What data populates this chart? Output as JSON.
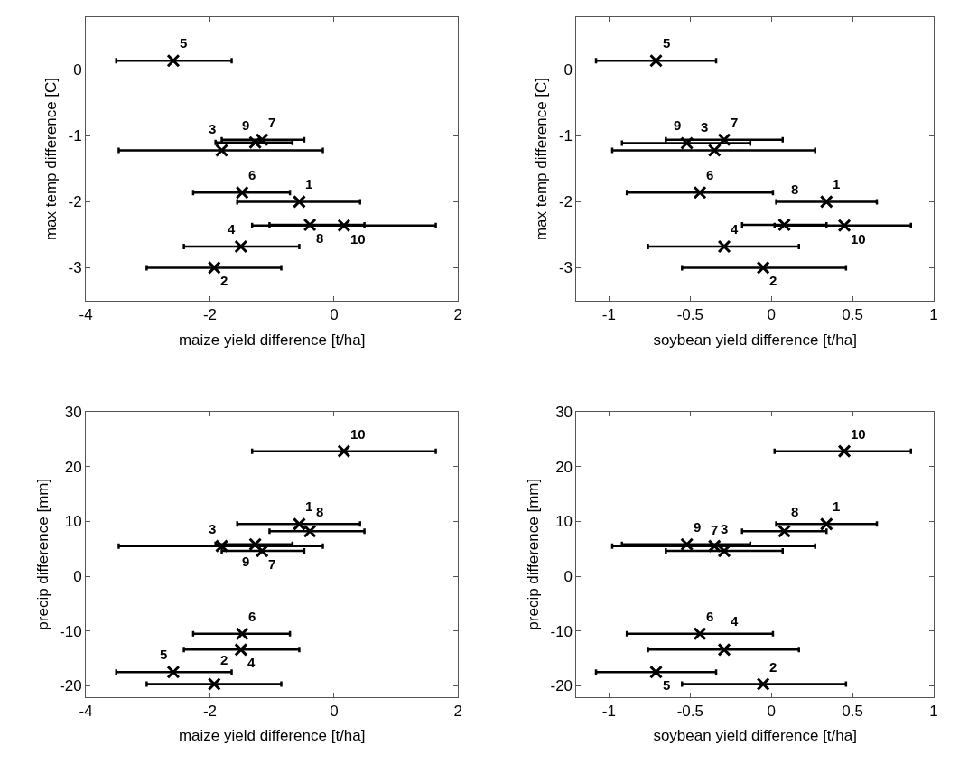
{
  "chart_data": [
    {
      "type": "scatter",
      "xlabel": "maize yield difference [t/ha]",
      "ylabel": "max temp difference [C]",
      "xlim": [
        -4,
        2
      ],
      "xticks": [
        -4,
        -2,
        0,
        2
      ],
      "ylim": [
        -3.5,
        0.8
      ],
      "yticks": [
        -3,
        -2,
        -1,
        0
      ],
      "marker": "cross",
      "series": [
        {
          "color": "#000000",
          "x": [
            -0.56,
            -1.93,
            -1.81,
            -1.5,
            -2.59,
            -1.48,
            -1.16,
            -0.39,
            -1.27,
            0.16
          ],
          "values": [
            -2.0,
            -3.0,
            -1.22,
            -2.68,
            0.14,
            -1.86,
            -1.06,
            -2.35,
            -1.1,
            -2.36
          ],
          "xerrors": [
            [
              -1.56,
              0.42
            ],
            [
              -3.02,
              -0.85
            ],
            [
              -3.47,
              -0.18
            ],
            [
              -2.42,
              -0.56
            ],
            [
              -3.51,
              -1.65
            ],
            [
              -2.27,
              -0.71
            ],
            [
              -1.81,
              -0.48
            ],
            [
              -1.04,
              0.49
            ],
            [
              -1.91,
              -0.67
            ],
            [
              -1.32,
              1.64
            ]
          ]
        }
      ],
      "annotations": [
        {
          "text": "1",
          "x": -0.56,
          "y": -2.0
        },
        {
          "text": "2",
          "x": -1.93,
          "y": -3.0
        },
        {
          "text": "3",
          "x": -1.81,
          "y": -1.22
        },
        {
          "text": "4",
          "x": -1.5,
          "y": -2.68
        },
        {
          "text": "5",
          "x": -2.59,
          "y": 0.14
        },
        {
          "text": "6",
          "x": -1.48,
          "y": -1.86
        },
        {
          "text": "7",
          "x": -1.16,
          "y": -1.06
        },
        {
          "text": "8",
          "x": -0.39,
          "y": -2.35
        },
        {
          "text": "9",
          "x": -1.27,
          "y": -1.1
        },
        {
          "text": "10",
          "x": 0.16,
          "y": -2.36
        }
      ]
    },
    {
      "type": "scatter",
      "xlabel": "soybean yield difference [t/ha]",
      "ylabel": "max temp difference [C]",
      "xlim": [
        -1.2,
        1
      ],
      "xticks": [
        -1,
        -0.5,
        0,
        0.5,
        1
      ],
      "ylim": [
        -3.5,
        0.8
      ],
      "yticks": [
        -3,
        -2,
        -1,
        0
      ],
      "marker": "cross",
      "series": [
        {
          "color": "#000000",
          "x": [
            0.34,
            -0.05,
            -0.35,
            -0.29,
            -0.71,
            -0.44,
            -0.29,
            0.08,
            -0.52,
            0.45
          ],
          "values": [
            -2.0,
            -3.0,
            -1.22,
            -2.68,
            0.14,
            -1.86,
            -1.06,
            -2.35,
            -1.11,
            -2.36
          ],
          "xerrors": [
            [
              0.03,
              0.65
            ],
            [
              -0.55,
              0.46
            ],
            [
              -0.98,
              0.27
            ],
            [
              -0.76,
              0.17
            ],
            [
              -1.08,
              -0.34
            ],
            [
              -0.89,
              0.01
            ],
            [
              -0.65,
              0.07
            ],
            [
              -0.18,
              0.34
            ],
            [
              -0.92,
              -0.13
            ],
            [
              0.02,
              0.86
            ]
          ]
        }
      ],
      "annotations": [
        {
          "text": "1",
          "x": 0.34,
          "y": -2.0
        },
        {
          "text": "2",
          "x": -0.05,
          "y": -3.0
        },
        {
          "text": "3",
          "x": -0.35,
          "y": -1.22
        },
        {
          "text": "4",
          "x": -0.29,
          "y": -2.68
        },
        {
          "text": "5",
          "x": -0.71,
          "y": 0.14
        },
        {
          "text": "6",
          "x": -0.44,
          "y": -1.86
        },
        {
          "text": "7",
          "x": -0.29,
          "y": -1.06
        },
        {
          "text": "8",
          "x": 0.08,
          "y": -2.35
        },
        {
          "text": "9",
          "x": -0.52,
          "y": -1.11
        },
        {
          "text": "10",
          "x": 0.45,
          "y": -2.36
        }
      ]
    },
    {
      "type": "scatter",
      "xlabel": "maize yield difference [t/ha]",
      "ylabel": "precip difference [mm]",
      "xlim": [
        -4,
        2
      ],
      "xticks": [
        -4,
        -2,
        0,
        2
      ],
      "ylim": [
        -22,
        30
      ],
      "yticks": [
        -20,
        -10,
        0,
        10,
        20,
        30
      ],
      "marker": "cross",
      "series": [
        {
          "color": "#000000",
          "x": [
            -0.56,
            -1.93,
            -1.81,
            -1.5,
            -2.59,
            -1.48,
            -1.16,
            -0.39,
            -1.27,
            0.16
          ],
          "values": [
            9.5,
            -19.7,
            5.5,
            -13.4,
            -17.5,
            -10.5,
            4.6,
            8.2,
            5.8,
            22.8
          ],
          "xerrors": [
            [
              -1.56,
              0.42
            ],
            [
              -3.02,
              -0.85
            ],
            [
              -3.47,
              -0.18
            ],
            [
              -2.42,
              -0.56
            ],
            [
              -3.51,
              -1.65
            ],
            [
              -2.27,
              -0.71
            ],
            [
              -1.81,
              -0.48
            ],
            [
              -1.04,
              0.49
            ],
            [
              -1.91,
              -0.67
            ],
            [
              -1.32,
              1.64
            ]
          ]
        }
      ],
      "annotations": [
        {
          "text": "1",
          "x": -0.56,
          "y": 9.5
        },
        {
          "text": "2",
          "x": -1.93,
          "y": -19.7
        },
        {
          "text": "3",
          "x": -1.81,
          "y": 5.5
        },
        {
          "text": "4",
          "x": -1.5,
          "y": -13.4
        },
        {
          "text": "5",
          "x": -2.59,
          "y": -17.5
        },
        {
          "text": "6",
          "x": -1.48,
          "y": -10.5
        },
        {
          "text": "7",
          "x": -1.16,
          "y": 4.6
        },
        {
          "text": "8",
          "x": -0.39,
          "y": 8.2
        },
        {
          "text": "9",
          "x": -1.27,
          "y": 5.8
        },
        {
          "text": "10",
          "x": 0.16,
          "y": 22.8
        }
      ]
    },
    {
      "type": "scatter",
      "xlabel": "soybean yield difference [t/ha]",
      "ylabel": "precip difference [mm]",
      "xlim": [
        -1.2,
        1
      ],
      "xticks": [
        -1,
        -0.5,
        0,
        0.5,
        1
      ],
      "ylim": [
        -22,
        30
      ],
      "yticks": [
        -20,
        -10,
        0,
        10,
        20,
        30
      ],
      "marker": "cross",
      "series": [
        {
          "color": "#000000",
          "x": [
            0.34,
            -0.05,
            -0.35,
            -0.29,
            -0.71,
            -0.44,
            -0.29,
            0.08,
            -0.52,
            0.45
          ],
          "values": [
            9.5,
            -19.7,
            5.5,
            -13.4,
            -17.5,
            -10.5,
            4.6,
            8.2,
            5.8,
            22.8
          ],
          "xerrors": [
            [
              0.03,
              0.65
            ],
            [
              -0.55,
              0.46
            ],
            [
              -0.98,
              0.27
            ],
            [
              -0.76,
              0.17
            ],
            [
              -1.08,
              -0.34
            ],
            [
              -0.89,
              0.01
            ],
            [
              -0.65,
              0.07
            ],
            [
              -0.18,
              0.34
            ],
            [
              -0.92,
              -0.13
            ],
            [
              0.02,
              0.86
            ]
          ]
        }
      ],
      "annotations": [
        {
          "text": "1",
          "x": 0.34,
          "y": 9.5
        },
        {
          "text": "2",
          "x": -0.05,
          "y": -19.7
        },
        {
          "text": "3",
          "x": -0.35,
          "y": 5.5
        },
        {
          "text": "4",
          "x": -0.29,
          "y": -13.4
        },
        {
          "text": "5",
          "x": -0.71,
          "y": -17.5
        },
        {
          "text": "6",
          "x": -0.44,
          "y": -10.5
        },
        {
          "text": "7",
          "x": -0.29,
          "y": 4.6
        },
        {
          "text": "8",
          "x": 0.08,
          "y": 8.2
        },
        {
          "text": "9",
          "x": -0.52,
          "y": 5.8
        },
        {
          "text": "10",
          "x": 0.45,
          "y": 22.8
        }
      ]
    }
  ]
}
